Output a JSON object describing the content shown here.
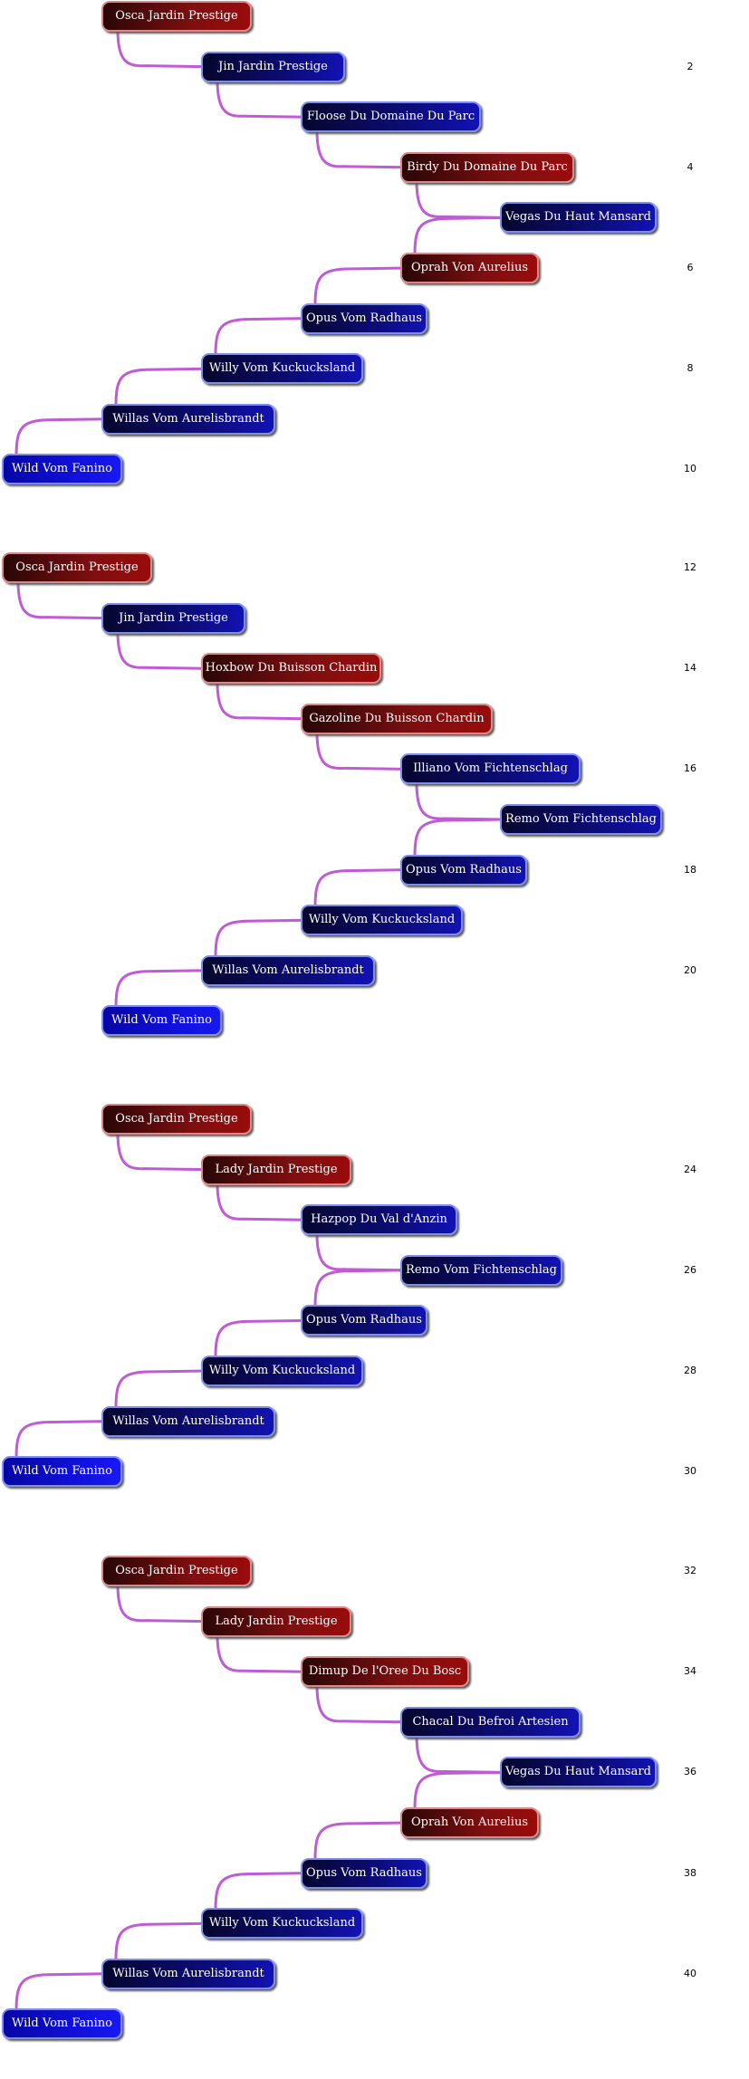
{
  "colors": {
    "connector": "#c05ad6",
    "red_node": "#8a0e0e",
    "blue_node": "#0c0c7a",
    "bright_node": "#1212e0",
    "node_border": "#7f8fe8"
  },
  "row_labels": [
    "2",
    "4",
    "6",
    "8",
    "10",
    "12",
    "14",
    "16",
    "18",
    "20",
    "24",
    "26",
    "28",
    "30",
    "32",
    "34",
    "36",
    "38",
    "40"
  ],
  "groups": [
    {
      "nodes": [
        {
          "label": "Osca Jardin Prestige",
          "color": "red",
          "level": 1
        },
        {
          "label": "Jin Jardin Prestige",
          "color": "blue",
          "level": 2
        },
        {
          "label": "Floose Du Domaine Du Parc",
          "color": "blue",
          "level": 3
        },
        {
          "label": "Birdy Du Domaine Du Parc",
          "color": "red",
          "level": 4
        },
        {
          "label": "Vegas Du Haut Mansard",
          "color": "blue",
          "level": 5
        },
        {
          "label": "Oprah Von Aurelius",
          "color": "red",
          "level": 4
        },
        {
          "label": "Opus Vom Radhaus",
          "color": "blue",
          "level": 3
        },
        {
          "label": "Willy Vom Kuckucksland",
          "color": "blue",
          "level": 2
        },
        {
          "label": "Willas Vom Aurelisbrandt",
          "color": "blue",
          "level": 1
        },
        {
          "label": "Wild Vom Fanino",
          "color": "bright",
          "level": 0
        }
      ]
    },
    {
      "nodes": [
        {
          "label": "Osca Jardin Prestige",
          "color": "red",
          "level": 0
        },
        {
          "label": "Jin Jardin Prestige",
          "color": "blue",
          "level": 1
        },
        {
          "label": "Hoxbow Du Buisson Chardin",
          "color": "red",
          "level": 2
        },
        {
          "label": "Gazoline Du Buisson Chardin",
          "color": "red",
          "level": 3
        },
        {
          "label": "Illiano Vom Fichtenschlag",
          "color": "blue",
          "level": 4
        },
        {
          "label": "Remo Vom Fichtenschlag",
          "color": "blue",
          "level": 5
        },
        {
          "label": "Opus Vom Radhaus",
          "color": "blue",
          "level": 4
        },
        {
          "label": "Willy Vom Kuckucksland",
          "color": "blue",
          "level": 3
        },
        {
          "label": "Willas Vom Aurelisbrandt",
          "color": "blue",
          "level": 2
        },
        {
          "label": "Wild Vom Fanino",
          "color": "bright",
          "level": 1
        }
      ]
    },
    {
      "nodes": [
        {
          "label": "Osca Jardin Prestige",
          "color": "red",
          "level": 1
        },
        {
          "label": "Lady Jardin Prestige",
          "color": "red",
          "level": 2
        },
        {
          "label": "Hazpop Du Val d'Anzin",
          "color": "blue",
          "level": 3
        },
        {
          "label": "Remo Vom Fichtenschlag",
          "color": "blue",
          "level": 4
        },
        {
          "label": "Opus Vom Radhaus",
          "color": "blue",
          "level": 3
        },
        {
          "label": "Willy Vom Kuckucksland",
          "color": "blue",
          "level": 2
        },
        {
          "label": "Willas Vom Aurelisbrandt",
          "color": "blue",
          "level": 1
        },
        {
          "label": "Wild Vom Fanino",
          "color": "bright",
          "level": 0
        }
      ]
    },
    {
      "nodes": [
        {
          "label": "Osca Jardin Prestige",
          "color": "red",
          "level": 1
        },
        {
          "label": "Lady Jardin Prestige",
          "color": "red",
          "level": 2
        },
        {
          "label": "Dimup De l'Oree Du Bosc",
          "color": "red",
          "level": 3
        },
        {
          "label": "Chacal Du Befroi Artesien",
          "color": "blue",
          "level": 4
        },
        {
          "label": "Vegas Du Haut Mansard",
          "color": "blue",
          "level": 5
        },
        {
          "label": "Oprah Von Aurelius",
          "color": "red",
          "level": 4
        },
        {
          "label": "Opus Vom Radhaus",
          "color": "blue",
          "level": 3
        },
        {
          "label": "Willy Vom Kuckucksland",
          "color": "blue",
          "level": 2
        },
        {
          "label": "Willas Vom Aurelisbrandt",
          "color": "blue",
          "level": 1
        },
        {
          "label": "Wild Vom Fanino",
          "color": "bright",
          "level": 0
        }
      ]
    }
  ]
}
